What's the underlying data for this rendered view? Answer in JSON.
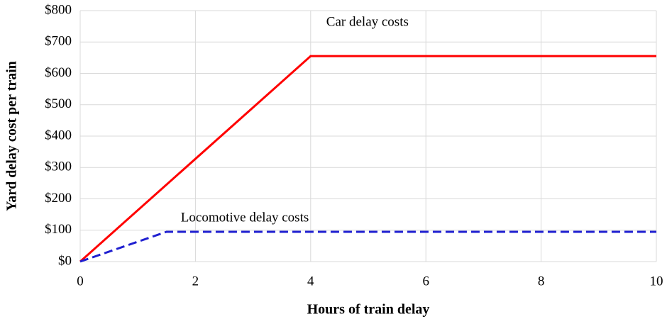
{
  "chart_data": {
    "type": "line",
    "x_label": "Hours of train delay",
    "y_label": "Yard delay cost per train",
    "xlim": [
      0,
      10
    ],
    "xticks": [
      0,
      2,
      4,
      6,
      8,
      10
    ],
    "ylim": [
      0,
      800
    ],
    "yticks": [
      {
        "value": 0,
        "label": "$0"
      },
      {
        "value": 100,
        "label": "$100"
      },
      {
        "value": 200,
        "label": "$200"
      },
      {
        "value": 300,
        "label": "$300"
      },
      {
        "value": 400,
        "label": "$400"
      },
      {
        "value": 500,
        "label": "$500"
      },
      {
        "value": 600,
        "label": "$600"
      },
      {
        "value": 700,
        "label": "$700"
      },
      {
        "value": 800,
        "label": "$800"
      }
    ],
    "grid": true,
    "series": [
      {
        "name": "Car delay costs",
        "color": "#ff0000",
        "style": "solid",
        "x": [
          0,
          4,
          10
        ],
        "values": [
          0,
          655,
          655
        ]
      },
      {
        "name": "Locomotive delay costs",
        "color": "#1f1fd0",
        "style": "dashed",
        "x": [
          0,
          1.5,
          10
        ],
        "values": [
          0,
          95,
          95
        ]
      }
    ]
  }
}
